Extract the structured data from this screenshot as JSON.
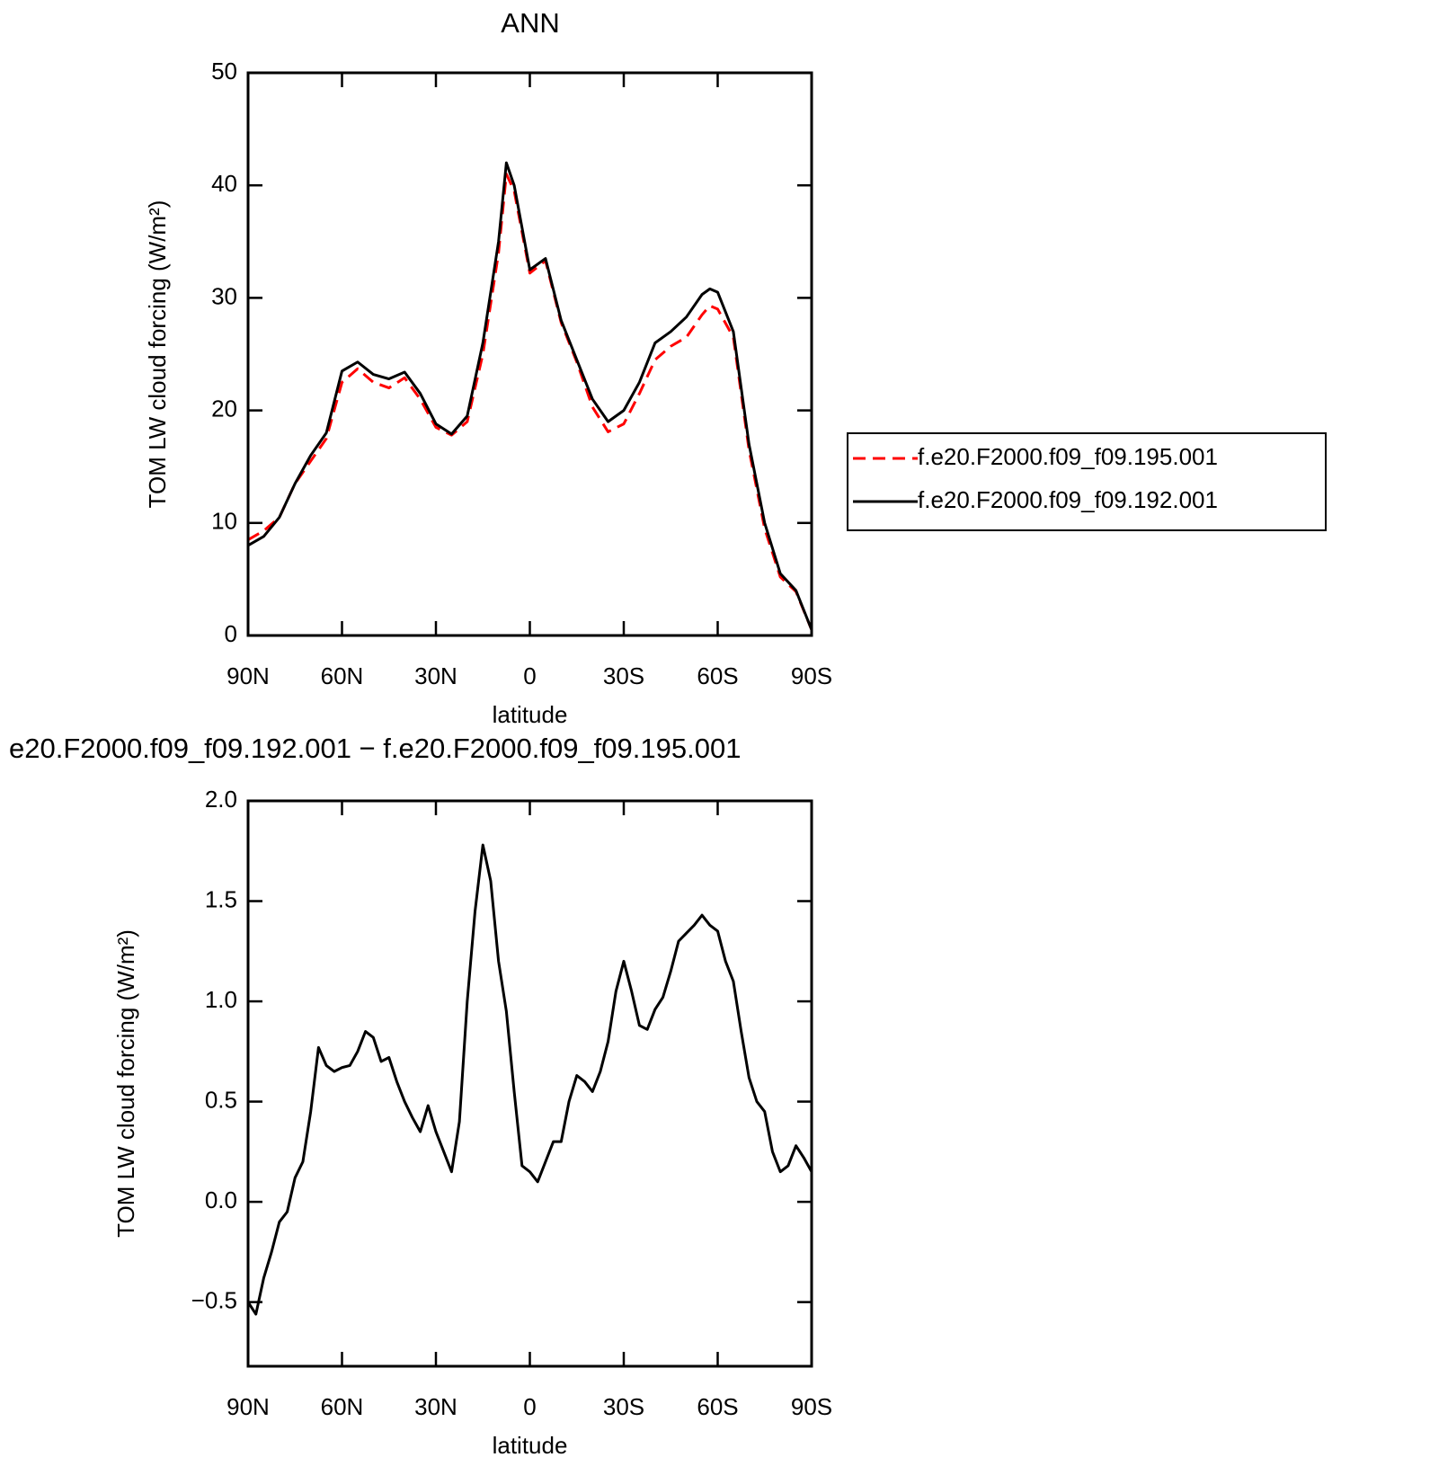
{
  "chart_data": [
    {
      "type": "line",
      "title": "ANN",
      "xlabel": "latitude",
      "ylabel": "TOM LW cloud forcing (W/m²)",
      "x": [
        90,
        85,
        80,
        75,
        70,
        65,
        60,
        55,
        50,
        45,
        40,
        35,
        30,
        25,
        20,
        15,
        10,
        7.5,
        5,
        0,
        -5,
        -10,
        -15,
        -20,
        -25,
        -30,
        -35,
        -40,
        -45,
        -50,
        -55,
        -57.5,
        -60,
        -65,
        -70,
        -75,
        -80,
        -85,
        -90
      ],
      "series": [
        {
          "name": "f.e20.F2000.f09_f09.195.001",
          "color": "#ff0000",
          "linestyle": "dashed",
          "values": [
            8.5,
            9.3,
            10.5,
            13.5,
            15.5,
            17.5,
            22.5,
            23.7,
            22.5,
            22,
            22.9,
            21,
            18.5,
            17.8,
            19,
            25,
            34,
            41,
            39.5,
            32.2,
            33.3,
            27.8,
            24.3,
            20.3,
            18.1,
            18.8,
            21.5,
            24.5,
            25.7,
            26.5,
            28.5,
            29.3,
            29,
            26.5,
            16.5,
            9.5,
            5.2,
            3.9,
            0.5
          ]
        },
        {
          "name": "f.e20.F2000.f09_f09.192.001",
          "color": "#000000",
          "linestyle": "solid",
          "values": [
            8,
            8.8,
            10.5,
            13.5,
            16,
            18,
            23.5,
            24.3,
            23.2,
            22.8,
            23.4,
            21.5,
            18.8,
            17.9,
            19.5,
            26,
            35,
            42,
            40,
            32.5,
            33.5,
            28,
            24.5,
            21,
            19,
            20,
            22.5,
            26,
            27,
            28.3,
            30.3,
            30.8,
            30.5,
            27,
            17,
            10,
            5.5,
            4,
            0.5
          ]
        }
      ],
      "xlim": [
        90,
        -90
      ],
      "xticks": [
        {
          "value": 90,
          "label": "90N"
        },
        {
          "value": 60,
          "label": "60N"
        },
        {
          "value": 30,
          "label": "30N"
        },
        0,
        {
          "value": -30,
          "label": "30S"
        },
        {
          "value": -60,
          "label": "60S"
        },
        {
          "value": -90,
          "label": "90S"
        }
      ],
      "ylim": [
        0,
        50
      ],
      "yticks": [
        0,
        10,
        20,
        30,
        40,
        50
      ],
      "legend": "right"
    },
    {
      "type": "line",
      "title": "e20.F2000.f09_f09.192.001 − f.e20.F2000.f09_f09.195.001",
      "xlabel": "latitude",
      "ylabel": "TOM LW cloud forcing (W/m²)",
      "x": [
        90,
        87.5,
        85,
        82.5,
        80,
        77.5,
        75,
        72.5,
        70,
        67.5,
        65,
        62.5,
        60,
        57.5,
        55,
        52.5,
        50,
        47.5,
        45,
        42.5,
        40,
        37.5,
        35,
        32.5,
        30,
        27.5,
        25,
        22.5,
        20,
        17.5,
        15,
        12.5,
        10,
        7.5,
        5,
        2.5,
        0,
        -2.5,
        -5,
        -7.5,
        -10,
        -12.5,
        -15,
        -17.5,
        -20,
        -22.5,
        -25,
        -27.5,
        -30,
        -32.5,
        -35,
        -37.5,
        -40,
        -42.5,
        -45,
        -47.5,
        -50,
        -52.5,
        -55,
        -57.5,
        -60,
        -62.5,
        -65,
        -67.5,
        -70,
        -72.5,
        -75,
        -77.5,
        -80,
        -82.5,
        -85,
        -87.5,
        -90
      ],
      "series": [
        {
          "color": "#000000",
          "linestyle": "solid",
          "values": [
            -0.5,
            -0.56,
            -0.38,
            -0.25,
            -0.1,
            -0.05,
            0.12,
            0.2,
            0.45,
            0.77,
            0.68,
            0.65,
            0.67,
            0.68,
            0.75,
            0.85,
            0.82,
            0.7,
            0.72,
            0.6,
            0.5,
            0.42,
            0.35,
            0.48,
            0.35,
            0.25,
            0.15,
            0.4,
            1.0,
            1.45,
            1.78,
            1.6,
            1.2,
            0.95,
            0.55,
            0.18,
            0.15,
            0.1,
            0.2,
            0.3,
            0.3,
            0.5,
            0.63,
            0.6,
            0.55,
            0.65,
            0.8,
            1.05,
            1.2,
            1.05,
            0.88,
            0.86,
            0.96,
            1.02,
            1.15,
            1.3,
            1.34,
            1.38,
            1.43,
            1.38,
            1.35,
            1.2,
            1.1,
            0.85,
            0.62,
            0.5,
            0.45,
            0.25,
            0.15,
            0.18,
            0.28,
            0.22,
            0.15
          ]
        }
      ],
      "xlim": [
        90,
        -90
      ],
      "xticks": [
        {
          "value": 90,
          "label": "90N"
        },
        {
          "value": 60,
          "label": "60N"
        },
        {
          "value": 30,
          "label": "30N"
        },
        0,
        {
          "value": -30,
          "label": "30S"
        },
        {
          "value": -60,
          "label": "60S"
        },
        {
          "value": -90,
          "label": "90S"
        }
      ],
      "ylim": [
        -0.82,
        2.0
      ],
      "yticks": [
        {
          "value": -0.5,
          "label": "−0.5"
        },
        {
          "value": 0,
          "label": "0.0"
        },
        0.5,
        {
          "value": 1,
          "label": "1.0"
        },
        1.5,
        {
          "value": 2,
          "label": "2.0"
        }
      ]
    }
  ]
}
